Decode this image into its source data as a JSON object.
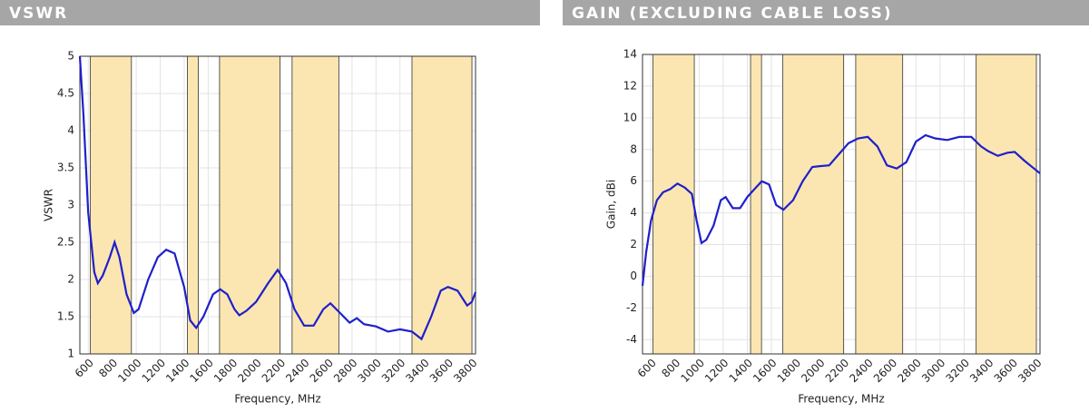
{
  "chart_data": [
    {
      "type": "line",
      "header": "VSWR",
      "xlabel": "Frequency, MHz",
      "ylabel": "VSWR",
      "xlim": [
        530,
        3830
      ],
      "ylim": [
        1,
        5
      ],
      "xticks": [
        600,
        800,
        1000,
        1200,
        1400,
        1600,
        1800,
        2000,
        2200,
        2400,
        2600,
        2800,
        3000,
        3200,
        3400,
        3600,
        3800
      ],
      "yticks": [
        1,
        1.5,
        2,
        2.5,
        3,
        3.5,
        4,
        4.5,
        5
      ],
      "grid": true,
      "bands": [
        [
          617,
          960
        ],
        [
          1427,
          1518
        ],
        [
          1695,
          2200
        ],
        [
          2300,
          2690
        ],
        [
          3300,
          3800
        ]
      ],
      "band_color": "#fbe6b2",
      "series": [
        {
          "color": "#1f1fcc",
          "x": [
            530,
            560,
            600,
            650,
            680,
            720,
            780,
            820,
            860,
            920,
            980,
            1020,
            1100,
            1180,
            1250,
            1320,
            1400,
            1450,
            1500,
            1560,
            1640,
            1700,
            1760,
            1820,
            1860,
            1920,
            2000,
            2100,
            2180,
            2250,
            2320,
            2400,
            2480,
            2560,
            2620,
            2700,
            2780,
            2840,
            2900,
            3000,
            3100,
            3200,
            3300,
            3380,
            3460,
            3540,
            3600,
            3680,
            3760,
            3800,
            3830
          ],
          "values": [
            5,
            4.2,
            2.9,
            2.1,
            1.95,
            2.05,
            2.3,
            2.5,
            2.3,
            1.8,
            1.55,
            1.6,
            2.0,
            2.3,
            2.4,
            2.35,
            1.9,
            1.45,
            1.35,
            1.5,
            1.8,
            1.87,
            1.8,
            1.6,
            1.52,
            1.58,
            1.7,
            1.95,
            2.13,
            1.95,
            1.6,
            1.38,
            1.38,
            1.6,
            1.68,
            1.55,
            1.42,
            1.48,
            1.4,
            1.37,
            1.3,
            1.33,
            1.3,
            1.2,
            1.5,
            1.85,
            1.9,
            1.85,
            1.65,
            1.7,
            1.83
          ]
        }
      ]
    },
    {
      "type": "line",
      "header": "GAIN (EXCLUDING CABLE LOSS)",
      "xlabel": "Frequency, MHz",
      "ylabel": "Gain, dBi",
      "xlim": [
        530,
        3830
      ],
      "ylim": [
        -4.9,
        14
      ],
      "xticks": [
        600,
        800,
        1000,
        1200,
        1400,
        1600,
        1800,
        2000,
        2200,
        2400,
        2600,
        2800,
        3000,
        3200,
        3400,
        3600,
        3800
      ],
      "yticks": [
        -4,
        -2,
        0,
        2,
        4,
        6,
        8,
        10,
        12,
        14
      ],
      "grid": true,
      "bands": [
        [
          617,
          960
        ],
        [
          1427,
          1518
        ],
        [
          1695,
          2200
        ],
        [
          2300,
          2690
        ],
        [
          3300,
          3800
        ]
      ],
      "band_color": "#fbe6b2",
      "series": [
        {
          "color": "#1f1fcc",
          "x": [
            530,
            560,
            600,
            650,
            700,
            760,
            820,
            880,
            940,
            980,
            1020,
            1060,
            1120,
            1180,
            1220,
            1280,
            1340,
            1400,
            1460,
            1520,
            1580,
            1640,
            1700,
            1780,
            1860,
            1940,
            2000,
            2080,
            2160,
            2240,
            2320,
            2400,
            2480,
            2560,
            2640,
            2720,
            2800,
            2880,
            2960,
            3060,
            3160,
            3260,
            3340,
            3400,
            3480,
            3560,
            3620,
            3700,
            3780,
            3830
          ],
          "values": [
            -0.6,
            1.5,
            3.5,
            4.8,
            5.3,
            5.5,
            5.85,
            5.6,
            5.2,
            3.5,
            2.1,
            2.3,
            3.2,
            4.8,
            5.0,
            4.3,
            4.3,
            5.0,
            5.5,
            6.0,
            5.8,
            4.5,
            4.2,
            4.8,
            6.0,
            6.9,
            6.95,
            7.0,
            7.7,
            8.4,
            8.7,
            8.8,
            8.2,
            7.0,
            6.8,
            7.2,
            8.5,
            8.9,
            8.7,
            8.6,
            8.8,
            8.8,
            8.2,
            7.9,
            7.6,
            7.8,
            7.85,
            7.3,
            6.8,
            6.5
          ]
        }
      ]
    }
  ]
}
